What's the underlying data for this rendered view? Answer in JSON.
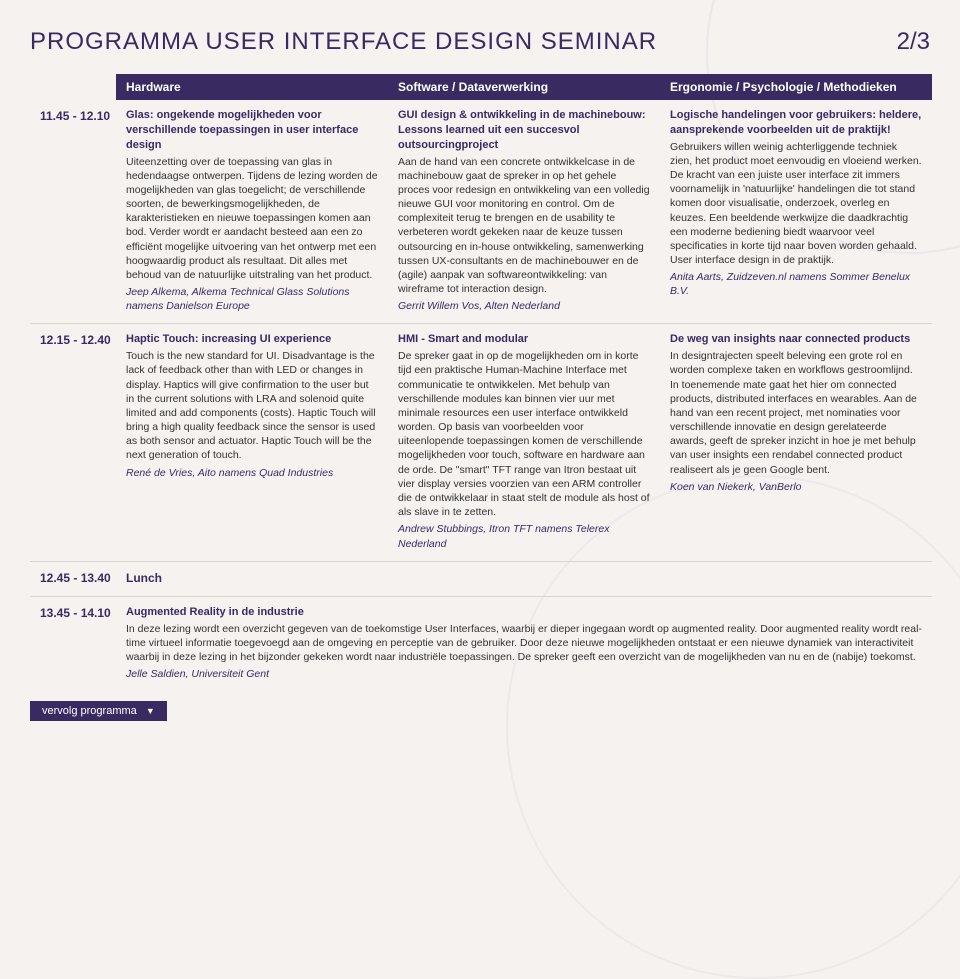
{
  "page": {
    "title": "PROGRAMMA USER INTERFACE DESIGN SEMINAR",
    "pagenum": "2/3",
    "vervolg": "vervolg programma"
  },
  "columns": {
    "hardware": "Hardware",
    "software": "Software / Dataverwerking",
    "ergonomie": "Ergonomie / Psychologie / Methodieken"
  },
  "rows": {
    "r1": {
      "time": "11.45 - 12.10",
      "hw": {
        "title": "Glas: ongekende mogelijkheden voor verschillende toepassingen in user interface design",
        "body": "Uiteenzetting over de toepassing van glas in hedendaagse ontwerpen. Tijdens de lezing worden de mogelijkheden van glas toegelicht; de verschillende soorten, de bewerkingsmogelijkheden, de karakteristieken en nieuwe toepassingen komen aan bod. Verder wordt er aandacht besteed aan een zo efficiënt mogelijke uitvoering van het ontwerp met een hoogwaardig product als resultaat. Dit alles met behoud van de natuurlijke uitstraling van het product.",
        "speaker": "Jeep Alkema, Alkema Technical Glass Solutions namens Danielson Europe"
      },
      "sw": {
        "title": "GUI design & ontwikkeling in de machinebouw: Lessons learned uit een succesvol outsourcingproject",
        "body": "Aan de hand van een concrete ontwikkelcase in de machinebouw gaat de spreker in op het gehele proces voor redesign en ontwikkeling van een volledig nieuwe GUI voor monitoring en control. Om de complexiteit terug te brengen en de usability te verbeteren wordt gekeken naar de keuze tussen outsourcing en in-house ontwikkeling, samenwerking tussen UX-consultants en de machinebouwer en de (agile) aanpak van softwareontwikkeling: van wireframe tot interaction design.",
        "speaker": "Gerrit Willem Vos, Alten Nederland"
      },
      "erg": {
        "title": "Logische handelingen voor gebruikers: heldere, aansprekende voorbeelden uit de praktijk!",
        "body": "Gebruikers willen weinig achterliggende techniek zien, het product moet eenvoudig en vloeiend werken. De kracht van een juiste user interface zit immers voornamelijk in 'natuurlijke' handelingen die tot stand komen door visualisatie, onderzoek, overleg en keuzes. Een beeldende werkwijze die daadkrachtig een moderne bediening biedt waarvoor veel specificaties in korte tijd naar boven worden gehaald. User interface design in de praktijk.",
        "speaker": "Anita Aarts, Zuidzeven.nl namens Sommer Benelux B.V."
      }
    },
    "r2": {
      "time": "12.15 - 12.40",
      "hw": {
        "title": "Haptic Touch: increasing UI experience",
        "body": "Touch is the new standard for UI. Disadvantage is the lack of feedback other than with LED or changes in display. Haptics will give confirmation to the user but in the current solutions with LRA and solenoid quite limited and add components (costs). Haptic Touch will bring a high quality feedback since the sensor is used as both sensor and actuator. Haptic Touch will be the next generation of touch.",
        "speaker": "René de Vries, Aito namens Quad Industries"
      },
      "sw": {
        "title": "HMI - Smart and modular",
        "body": "De spreker gaat in op de mogelijkheden om in korte tijd een praktische Human-Machine Interface met communicatie te ontwikkelen. Met behulp van verschillende modules kan binnen vier uur met minimale resources een user interface ontwikkeld worden. Op basis van voorbeelden voor uiteenlopende toepassingen komen de verschillende mogelijkheden voor touch, software en hardware aan de orde. De \"smart\" TFT range van Itron bestaat uit vier display versies voorzien van een ARM controller die de ontwikkelaar in staat stelt de module als host of als slave in te zetten.",
        "speaker": "Andrew Stubbings, Itron TFT namens Telerex Nederland"
      },
      "erg": {
        "title": "De weg van insights naar connected products",
        "body": "In designtrajecten speelt beleving een grote rol en worden complexe taken en workflows gestroomlijnd. In toenemende mate gaat het hier om connected products, distributed interfaces en wearables. Aan de hand van een recent project, met nominaties voor verschillende innovatie en design gerelateerde awards, geeft de spreker inzicht in hoe je met behulp van user insights een rendabel connected product realiseert als je geen Google bent.",
        "speaker": "Koen van Niekerk, VanBerlo"
      }
    },
    "r3": {
      "time": "12.45 - 13.40",
      "label": "Lunch"
    },
    "r4": {
      "time": "13.45 - 14.10",
      "title": "Augmented Reality in de industrie",
      "body": "In deze lezing wordt een overzicht gegeven van de toekomstige User Interfaces, waarbij er dieper ingegaan wordt op augmented reality. Door augmented reality wordt real-time virtueel informatie toegevoegd aan de omgeving en perceptie van de gebruiker. Door deze nieuwe mogelijkheden ontstaat er een nieuwe dynamiek van interactiviteit waarbij in deze lezing in het bijzonder gekeken wordt naar industriële toepassingen. De spreker geeft een overzicht van de mogelijkheden van nu en de (nabije) toekomst.",
      "speaker": "Jelle Saldien, Universiteit Gent"
    }
  }
}
